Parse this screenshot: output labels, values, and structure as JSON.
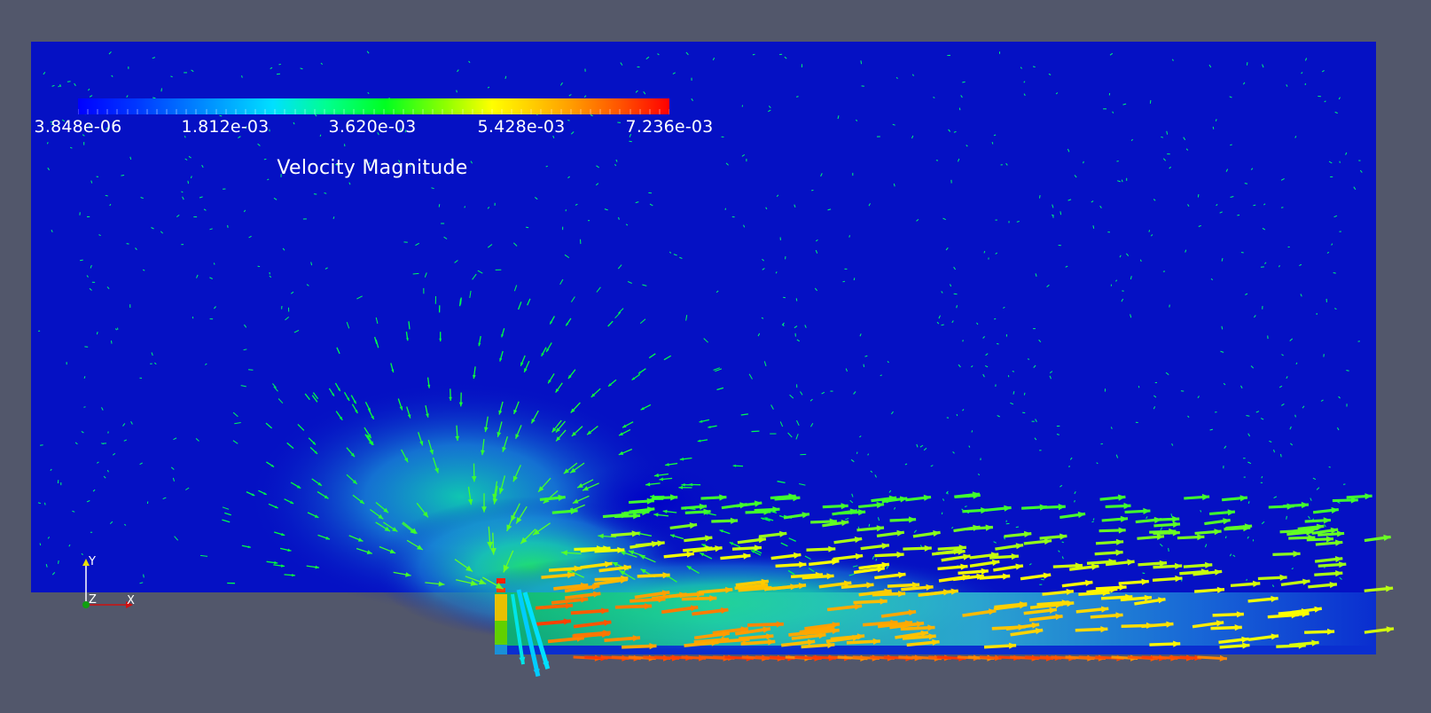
{
  "legend": {
    "title": "Velocity Magnitude",
    "tick_labels": [
      "3.848e-06",
      "1.812e-03",
      "3.620e-03",
      "5.428e-03",
      "7.236e-03"
    ],
    "range": [
      3.848e-06,
      0.007236
    ]
  },
  "orientation_axes": {
    "x_label": "X",
    "y_label": "Y",
    "z_label": "Z"
  },
  "colors": {
    "background": "#52576b",
    "domain_low": "#0511c4",
    "x_axis": "#d01010",
    "y_axis": "#e8e000",
    "z_axis": "#10a010"
  },
  "colormap": "blue-to-red rainbow",
  "glyph_type": "arrow"
}
